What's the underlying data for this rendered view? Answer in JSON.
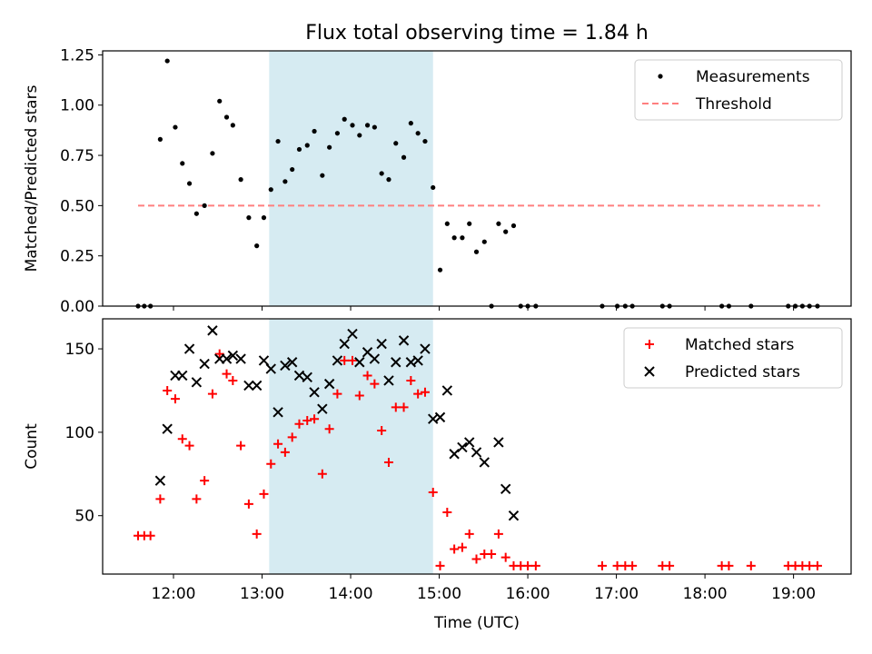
{
  "title": "Flux total observing time = 1.84 h",
  "colors": {
    "highlight": "#add8e6",
    "matched": "#ff0000",
    "predicted": "#000000",
    "threshold": "#ff7f7f"
  },
  "chart_data": [
    {
      "type": "scatter",
      "ylabel": "Matched/Predicted stars",
      "xlim": [
        11.2,
        19.65
      ],
      "ylim": [
        0,
        1.27
      ],
      "yticks": [
        0,
        0.25,
        0.5,
        0.75,
        1.0,
        1.25
      ],
      "ytick_labels": [
        "0.00",
        "0.25",
        "0.50",
        "0.75",
        "1.00",
        "1.25"
      ],
      "highlight_span": [
        13.08,
        14.93
      ],
      "legend": {
        "placement": "upper right",
        "entries": [
          "Measurements",
          "Threshold"
        ]
      },
      "threshold": {
        "name": "Threshold",
        "y": 0.5,
        "x": [
          11.6,
          19.3
        ]
      },
      "series": [
        {
          "name": "Measurements",
          "x": [
            11.6,
            11.67,
            11.74,
            11.85,
            11.93,
            12.02,
            12.1,
            12.18,
            12.26,
            12.35,
            12.44,
            12.52,
            12.6,
            12.67,
            12.76,
            12.85,
            12.94,
            13.02,
            13.1,
            13.18,
            13.26,
            13.34,
            13.42,
            13.51,
            13.59,
            13.68,
            13.76,
            13.85,
            13.93,
            14.02,
            14.1,
            14.19,
            14.27,
            14.35,
            14.43,
            14.51,
            14.6,
            14.68,
            14.76,
            14.84,
            14.93,
            15.01,
            15.09,
            15.17,
            15.26,
            15.34,
            15.42,
            15.51,
            15.59,
            15.67,
            15.75,
            15.84,
            15.92,
            16.0,
            16.09,
            16.84,
            17.01,
            17.1,
            17.18,
            17.52,
            17.6,
            18.19,
            18.27,
            18.52,
            18.94,
            19.02,
            19.1,
            19.18,
            19.27
          ],
          "y": [
            0,
            0,
            0,
            0.83,
            1.22,
            0.89,
            0.71,
            0.61,
            0.46,
            0.5,
            0.76,
            1.02,
            0.94,
            0.9,
            0.63,
            0.44,
            0.3,
            0.44,
            0.58,
            0.82,
            0.62,
            0.68,
            0.78,
            0.8,
            0.87,
            0.65,
            0.79,
            0.86,
            0.93,
            0.9,
            0.85,
            0.9,
            0.89,
            0.66,
            0.63,
            0.81,
            0.74,
            0.91,
            0.86,
            0.82,
            0.59,
            0.18,
            0.41,
            0.34,
            0.34,
            0.41,
            0.27,
            0.32,
            0,
            0.41,
            0.37,
            0.4,
            0,
            0,
            0,
            0,
            0,
            0,
            0,
            0,
            0,
            0,
            0,
            0,
            0,
            0,
            0,
            0,
            0
          ]
        }
      ]
    },
    {
      "type": "scatter",
      "xlabel": "Time (UTC)",
      "ylabel": "Count",
      "xlim": [
        11.2,
        19.65
      ],
      "ylim": [
        15,
        168
      ],
      "yticks": [
        50,
        100,
        150
      ],
      "ytick_labels": [
        "50",
        "100",
        "150"
      ],
      "xticks": [
        12,
        13,
        14,
        15,
        16,
        17,
        18,
        19
      ],
      "xtick_labels": [
        "12:00",
        "13:00",
        "14:00",
        "15:00",
        "16:00",
        "17:00",
        "18:00",
        "19:00"
      ],
      "highlight_span": [
        13.08,
        14.93
      ],
      "legend": {
        "placement": "upper right",
        "entries": [
          "Matched stars",
          "Predicted stars"
        ]
      },
      "series": [
        {
          "name": "Matched stars",
          "x": [
            11.6,
            11.67,
            11.74,
            11.85,
            11.93,
            12.02,
            12.1,
            12.18,
            12.26,
            12.35,
            12.44,
            12.52,
            12.6,
            12.67,
            12.76,
            12.85,
            12.94,
            13.02,
            13.1,
            13.18,
            13.26,
            13.34,
            13.42,
            13.51,
            13.59,
            13.68,
            13.76,
            13.85,
            13.93,
            14.02,
            14.1,
            14.19,
            14.27,
            14.35,
            14.43,
            14.51,
            14.6,
            14.68,
            14.76,
            14.84,
            14.93,
            15.01,
            15.09,
            15.17,
            15.26,
            15.34,
            15.42,
            15.51,
            15.59,
            15.67,
            15.75,
            15.84,
            15.92,
            16.0,
            16.09,
            16.84,
            17.01,
            17.1,
            17.18,
            17.52,
            17.6,
            18.19,
            18.27,
            18.52,
            18.94,
            19.02,
            19.1,
            19.18,
            19.27
          ],
          "y": [
            38,
            38,
            38,
            60,
            125,
            120,
            96,
            92,
            60,
            71,
            123,
            147,
            135,
            131,
            92,
            57,
            39,
            63,
            81,
            93,
            88,
            97,
            105,
            107,
            108,
            75,
            102,
            123,
            143,
            143,
            122,
            134,
            129,
            101,
            82,
            115,
            115,
            131,
            123,
            124,
            64,
            20,
            52,
            30,
            31,
            39,
            24,
            27,
            27,
            39,
            25,
            20,
            20,
            20,
            20,
            20,
            20,
            20,
            20,
            20,
            20,
            20,
            20,
            20,
            20,
            20,
            20,
            20,
            20
          ]
        },
        {
          "name": "Predicted stars",
          "x": [
            11.85,
            11.93,
            12.02,
            12.1,
            12.18,
            12.26,
            12.35,
            12.44,
            12.52,
            12.6,
            12.67,
            12.76,
            12.85,
            12.94,
            13.02,
            13.1,
            13.18,
            13.26,
            13.34,
            13.42,
            13.51,
            13.59,
            13.68,
            13.76,
            13.85,
            13.93,
            14.02,
            14.1,
            14.19,
            14.27,
            14.35,
            14.43,
            14.51,
            14.6,
            14.68,
            14.76,
            14.84,
            14.93,
            15.01,
            15.09,
            15.17,
            15.26,
            15.34,
            15.42,
            15.51,
            15.67,
            15.75,
            15.84
          ],
          "y": [
            71,
            102,
            134,
            134,
            150,
            130,
            141,
            161,
            144,
            144,
            146,
            144,
            128,
            128,
            143,
            138,
            112,
            140,
            142,
            134,
            133,
            124,
            114,
            129,
            143,
            153,
            159,
            142,
            148,
            144,
            153,
            131,
            142,
            155,
            142,
            143,
            150,
            108,
            109,
            125,
            87,
            91,
            94,
            88,
            82,
            94,
            66,
            50
          ]
        }
      ]
    }
  ]
}
